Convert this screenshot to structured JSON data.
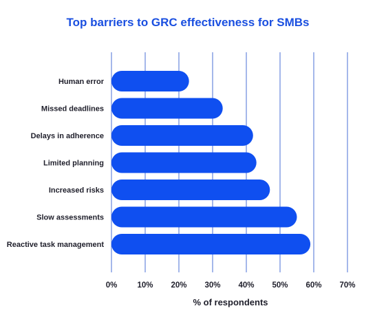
{
  "chart_data": {
    "type": "bar",
    "orientation": "horizontal",
    "title": "Top barriers to GRC effectiveness for SMBs",
    "xlabel": "% of respondents",
    "ylabel": "",
    "categories": [
      "Human error",
      "Missed deadlines",
      "Delays in adherence",
      "Limited planning",
      "Increased risks",
      "Slow assessments",
      "Reactive task management"
    ],
    "values": [
      23,
      33,
      42,
      43,
      47,
      55,
      59
    ],
    "xlim": [
      0,
      70
    ],
    "xticks": [
      "0%",
      "10%",
      "20%",
      "30%",
      "40%",
      "50%",
      "60%",
      "70%"
    ],
    "grid": "vertical",
    "legend": "none",
    "colors": {
      "bar": "#0f4ff0",
      "title": "#1a4fe0",
      "grid": "#4a6fd6",
      "text": "#1f1f2b"
    }
  }
}
